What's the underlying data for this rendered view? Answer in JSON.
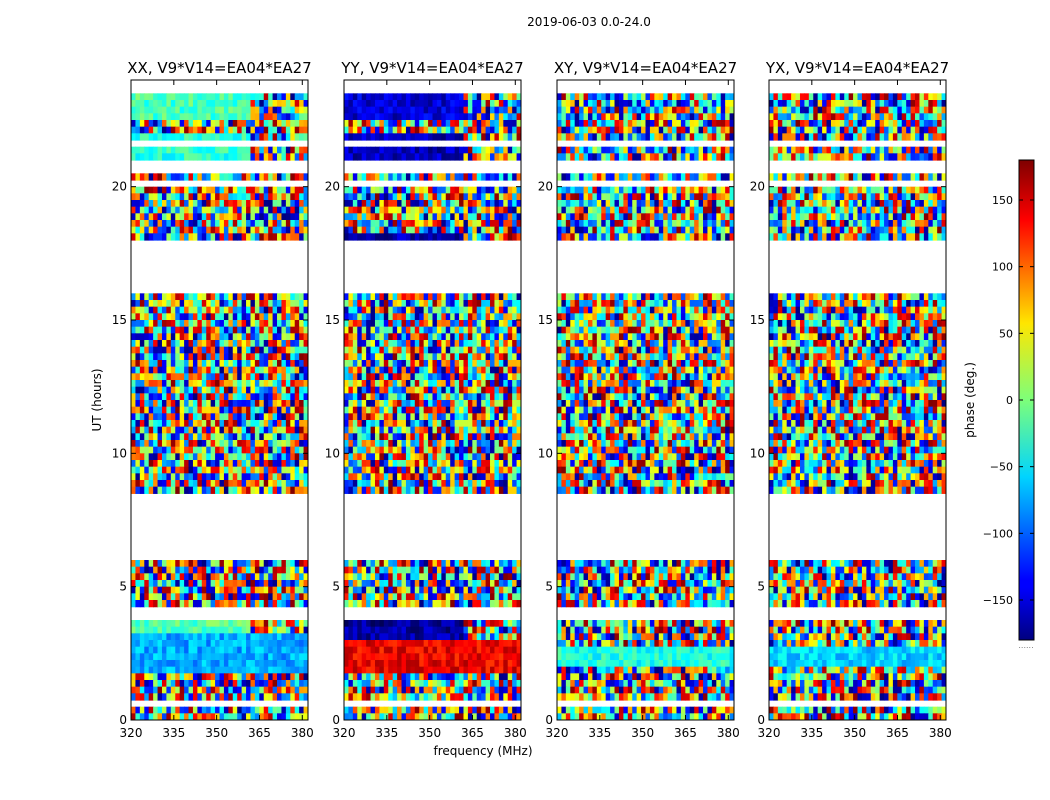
{
  "figure": {
    "title": "2019-06-03 0.0-24.0"
  },
  "chart_data": {
    "type": "heatmap",
    "xlabel": "frequency (MHz)",
    "ylabel": "UT (hours)",
    "xlim": [
      320,
      382
    ],
    "ylim": [
      0,
      24
    ],
    "x_ticks": [
      320,
      335,
      350,
      365,
      380
    ],
    "y_ticks": [
      0,
      5,
      10,
      15,
      20
    ],
    "colorbar": {
      "label": "phase (deg.)",
      "range": [
        -180,
        180
      ],
      "ticks": [
        150,
        100,
        50,
        0,
        -50,
        -100,
        -150
      ],
      "tick_labels": [
        "150",
        "100",
        "50",
        "0",
        "−50",
        "−100",
        "−150"
      ],
      "colormap": "jet",
      "footnote": "......"
    },
    "flagged_time_ranges_hours": [
      [
        0.55,
        0.65
      ],
      [
        3.75,
        4.15
      ],
      [
        5.0,
        5.1
      ],
      [
        6.05,
        8.45
      ],
      [
        15.2,
        15.3
      ],
      [
        15.9,
        18.05
      ],
      [
        20.0,
        20.2
      ],
      [
        20.55,
        20.9
      ],
      [
        21.55,
        21.65
      ],
      [
        22.15,
        22.3
      ],
      [
        22.75,
        22.85
      ],
      [
        23.55,
        24.0
      ]
    ],
    "panels": [
      {
        "title": "XX, V9*V14=EA04*EA27",
        "coherent_spans": [
          {
            "t": [
              3.15,
              3.75
            ],
            "f": [
              320,
              362
            ],
            "phase": -15
          },
          {
            "t": [
              1.8,
              3.15
            ],
            "f": [
              320,
              382
            ],
            "phase": -75
          },
          {
            "t": [
              22.4,
              23.5
            ],
            "f": [
              320,
              362
            ],
            "phase": -20
          },
          {
            "t": [
              21.0,
              22.1
            ],
            "f": [
              320,
              362
            ],
            "phase": -30
          }
        ]
      },
      {
        "title": "YY, V9*V14=EA04*EA27",
        "coherent_spans": [
          {
            "t": [
              2.9,
              3.75
            ],
            "f": [
              320,
              362
            ],
            "phase": -170
          },
          {
            "t": [
              1.8,
              2.9
            ],
            "f": [
              320,
              382
            ],
            "phase": 140
          },
          {
            "t": [
              22.5,
              23.5
            ],
            "f": [
              320,
              362
            ],
            "phase": -150
          },
          {
            "t": [
              21.0,
              22.1
            ],
            "f": [
              320,
              362
            ],
            "phase": -160
          },
          {
            "t": [
              17.9,
              18.3
            ],
            "f": [
              320,
              362
            ],
            "phase": -165
          }
        ]
      },
      {
        "title": "XY, V9*V14=EA04*EA27",
        "coherent_spans": [
          {
            "t": [
              1.9,
              2.8
            ],
            "f": [
              320,
              382
            ],
            "phase": -35
          }
        ]
      },
      {
        "title": "YX, V9*V14=EA04*EA27",
        "coherent_spans": [
          {
            "t": [
              2.0,
              2.8
            ],
            "f": [
              320,
              382
            ],
            "phase": -60
          }
        ]
      }
    ]
  }
}
